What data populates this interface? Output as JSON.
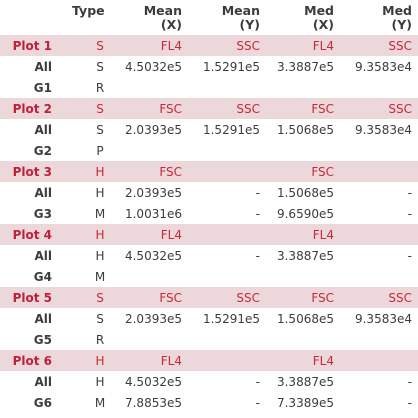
{
  "headers": {
    "type": "Type",
    "mean_x": [
      "Mean",
      "(X)"
    ],
    "mean_y": [
      "Mean",
      "(Y)"
    ],
    "med_x": [
      "Med",
      "(X)"
    ],
    "med_y": [
      "Med",
      "(Y)"
    ]
  },
  "rows": [
    {
      "label": "Plot 1",
      "plot": true,
      "type": "S",
      "mean_x": "FL4",
      "mean_y": "SSC",
      "med_x": "FL4",
      "med_y": "SSC"
    },
    {
      "label": "All",
      "plot": false,
      "type": "S",
      "mean_x": "4.5032e5",
      "mean_y": "1.5291e5",
      "med_x": "3.3887e5",
      "med_y": "9.3583e4"
    },
    {
      "label": "G1",
      "plot": false,
      "type": "R",
      "mean_x": "",
      "mean_y": "",
      "med_x": "",
      "med_y": ""
    },
    {
      "label": "Plot 2",
      "plot": true,
      "type": "S",
      "mean_x": "FSC",
      "mean_y": "SSC",
      "med_x": "FSC",
      "med_y": "SSC"
    },
    {
      "label": "All",
      "plot": false,
      "type": "S",
      "mean_x": "2.0393e5",
      "mean_y": "1.5291e5",
      "med_x": "1.5068e5",
      "med_y": "9.3583e4"
    },
    {
      "label": "G2",
      "plot": false,
      "type": "P",
      "mean_x": "",
      "mean_y": "",
      "med_x": "",
      "med_y": ""
    },
    {
      "label": "Plot 3",
      "plot": true,
      "type": "H",
      "mean_x": "FSC",
      "mean_y": "",
      "med_x": "FSC",
      "med_y": ""
    },
    {
      "label": "All",
      "plot": false,
      "type": "H",
      "mean_x": "2.0393e5",
      "mean_y": "-",
      "med_x": "1.5068e5",
      "med_y": "-"
    },
    {
      "label": "G3",
      "plot": false,
      "type": "M",
      "mean_x": "1.0031e6",
      "mean_y": "-",
      "med_x": "9.6590e5",
      "med_y": "-"
    },
    {
      "label": "Plot 4",
      "plot": true,
      "type": "H",
      "mean_x": "FL4",
      "mean_y": "",
      "med_x": "FL4",
      "med_y": ""
    },
    {
      "label": "All",
      "plot": false,
      "type": "H",
      "mean_x": "4.5032e5",
      "mean_y": "-",
      "med_x": "3.3887e5",
      "med_y": "-"
    },
    {
      "label": "G4",
      "plot": false,
      "type": "M",
      "mean_x": "",
      "mean_y": "",
      "med_x": "",
      "med_y": ""
    },
    {
      "label": "Plot 5",
      "plot": true,
      "type": "S",
      "mean_x": "FSC",
      "mean_y": "SSC",
      "med_x": "FSC",
      "med_y": "SSC"
    },
    {
      "label": "All",
      "plot": false,
      "type": "S",
      "mean_x": "2.0393e5",
      "mean_y": "1.5291e5",
      "med_x": "1.5068e5",
      "med_y": "9.3583e4"
    },
    {
      "label": "G5",
      "plot": false,
      "type": "R",
      "mean_x": "",
      "mean_y": "",
      "med_x": "",
      "med_y": ""
    },
    {
      "label": "Plot 6",
      "plot": true,
      "type": "H",
      "mean_x": "FL4",
      "mean_y": "",
      "med_x": "FL4",
      "med_y": ""
    },
    {
      "label": "All",
      "plot": false,
      "type": "H",
      "mean_x": "4.5032e5",
      "mean_y": "-",
      "med_x": "3.3887e5",
      "med_y": "-"
    },
    {
      "label": "G6",
      "plot": false,
      "type": "M",
      "mean_x": "7.8853e5",
      "mean_y": "-",
      "med_x": "7.3389e5",
      "med_y": "-"
    }
  ]
}
